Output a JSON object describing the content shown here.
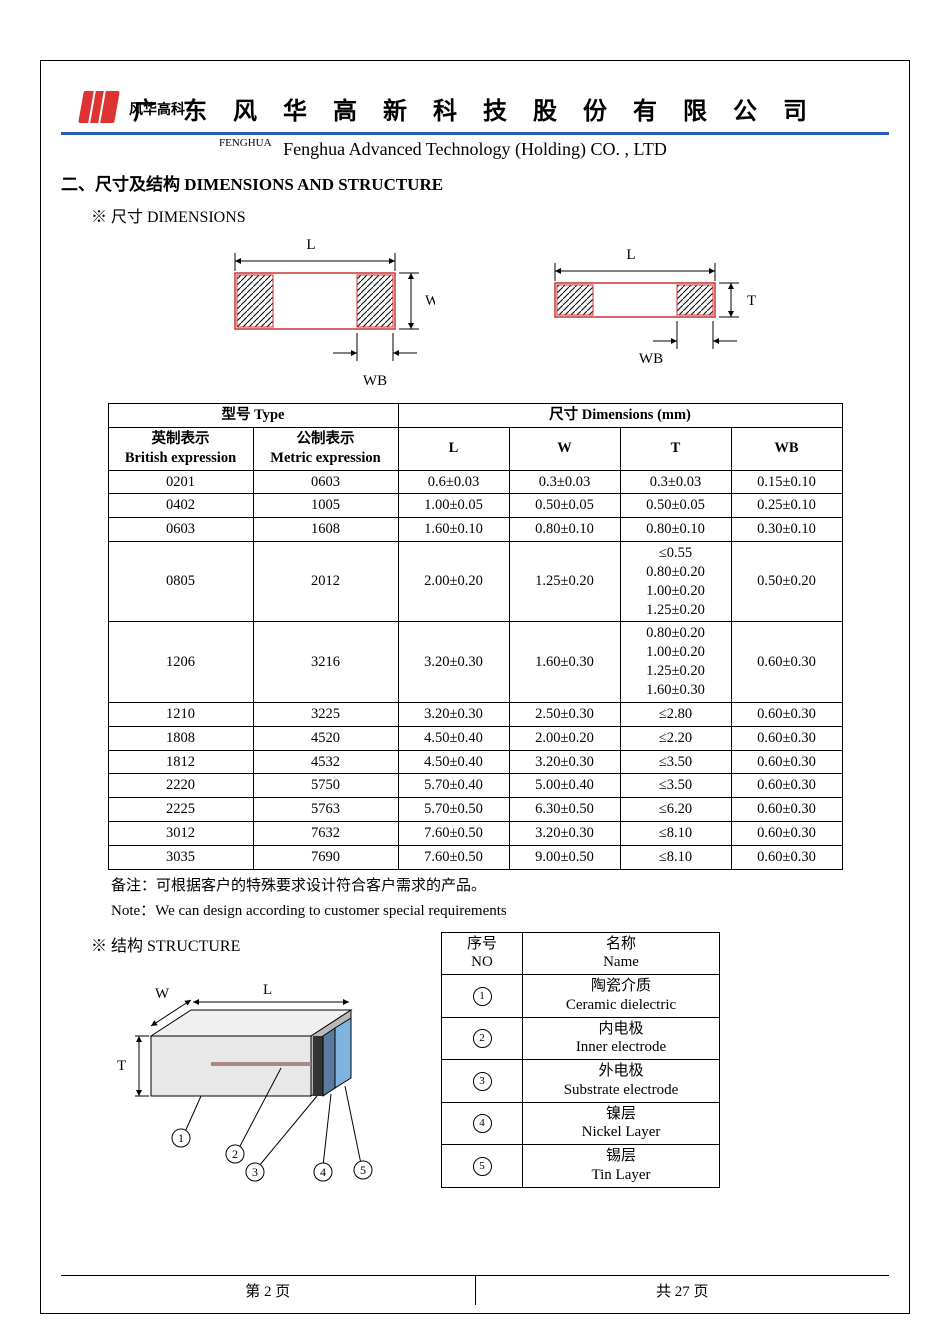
{
  "header": {
    "brand_cn": "风华高科",
    "company_cn": "广 东 风 华 高 新 科 技 股 份 有 限 公 司",
    "fenghua_label": "FENGHUA",
    "company_en": "Fenghua Advanced Technology (Holding) CO. , LTD"
  },
  "section": {
    "title": "二、尺寸及结构    DIMENSIONS AND STRUCTURE",
    "dim_sub": "※  尺寸 DIMENSIONS",
    "struct_sub": "※  结构 STRUCTURE"
  },
  "diagram": {
    "labels": {
      "L": "L",
      "W": "W",
      "T": "T",
      "WB": "WB"
    },
    "colors": {
      "outline": "#c33",
      "hatch": "#000",
      "bg": "#fff"
    }
  },
  "table": {
    "head": {
      "type": "型号 Type",
      "dim": "尺寸        Dimensions        (mm)",
      "brit_cn": "英制表示",
      "brit_en": "British expression",
      "met_cn": "公制表示",
      "met_en": "Metric expression",
      "L": "L",
      "W": "W",
      "T": "T",
      "WB": "WB"
    },
    "rows": [
      {
        "b": "0201",
        "m": "0603",
        "L": "0.6±0.03",
        "W": "0.3±0.03",
        "T": "0.3±0.03",
        "WB": "0.15±0.10"
      },
      {
        "b": "0402",
        "m": "1005",
        "L": "1.00±0.05",
        "W": "0.50±0.05",
        "T": "0.50±0.05",
        "WB": "0.25±0.10"
      },
      {
        "b": "0603",
        "m": "1608",
        "L": "1.60±0.10",
        "W": "0.80±0.10",
        "T": "0.80±0.10",
        "WB": "0.30±0.10"
      },
      {
        "b": "0805",
        "m": "2012",
        "L": "2.00±0.20",
        "W": "1.25±0.20",
        "T": "≤0.55\n0.80±0.20\n1.00±0.20\n1.25±0.20",
        "WB": "0.50±0.20"
      },
      {
        "b": "1206",
        "m": "3216",
        "L": "3.20±0.30",
        "W": "1.60±0.30",
        "T": "0.80±0.20\n1.00±0.20\n1.25±0.20\n1.60±0.30",
        "WB": "0.60±0.30"
      },
      {
        "b": "1210",
        "m": "3225",
        "L": "3.20±0.30",
        "W": "2.50±0.30",
        "T": "≤2.80",
        "WB": "0.60±0.30"
      },
      {
        "b": "1808",
        "m": "4520",
        "L": "4.50±0.40",
        "W": "2.00±0.20",
        "T": "≤2.20",
        "WB": "0.60±0.30"
      },
      {
        "b": "1812",
        "m": "4532",
        "L": "4.50±0.40",
        "W": "3.20±0.30",
        "T": "≤3.50",
        "WB": "0.60±0.30"
      },
      {
        "b": "2220",
        "m": "5750",
        "L": "5.70±0.40",
        "W": "5.00±0.40",
        "T": "≤3.50",
        "WB": "0.60±0.30"
      },
      {
        "b": "2225",
        "m": "5763",
        "L": "5.70±0.50",
        "W": "6.30±0.50",
        "T": "≤6.20",
        "WB": "0.60±0.30"
      },
      {
        "b": "3012",
        "m": "7632",
        "L": "7.60±0.50",
        "W": "3.20±0.30",
        "T": "≤8.10",
        "WB": "0.60±0.30"
      },
      {
        "b": "3035",
        "m": "7690",
        "L": "7.60±0.50",
        "W": "9.00±0.50",
        "T": "≤8.10",
        "WB": "0.60±0.30"
      }
    ]
  },
  "note": {
    "cn": "备注：可根据客户的特殊要求设计符合客户需求的产品。",
    "en": "Note：We can design according to customer special requirements"
  },
  "structure_table": {
    "head": {
      "no_cn": "序号",
      "no_en": "NO",
      "name_cn": "名称",
      "name_en": "Name"
    },
    "rows": [
      {
        "n": "1",
        "cn": "陶瓷介质",
        "en": "Ceramic    dielectric"
      },
      {
        "n": "2",
        "cn": "内电极",
        "en": "Inner    electrode"
      },
      {
        "n": "3",
        "cn": "外电极",
        "en": "Substrate    electrode"
      },
      {
        "n": "4",
        "cn": "镍层",
        "en": "Nickel Layer"
      },
      {
        "n": "5",
        "cn": "锡层",
        "en": "Tin Layer"
      }
    ]
  },
  "structure_diagram": {
    "body_color": "#e8e8e8",
    "body_dark": "#b9b9b9",
    "body_light": "#f0f0f0",
    "cap_outer": "#7fb4e0",
    "cap_mid": "#5a7aa0",
    "cap_inner": "#333"
  },
  "footer": {
    "left": "第    2    页",
    "right": "共  27   页"
  }
}
